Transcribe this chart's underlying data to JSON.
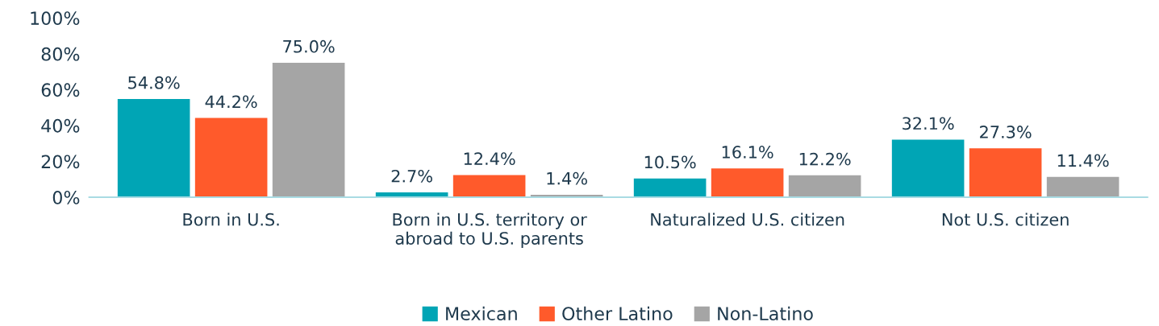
{
  "chart_data": {
    "type": "bar",
    "categories": [
      "Born in U.S.",
      "Born in U.S. territory or\nabroad to U.S. parents",
      "Naturalized U.S. citizen",
      "Not U.S. citizen"
    ],
    "series": [
      {
        "name": "Mexican",
        "color": "#00a5b5",
        "values": [
          54.8,
          2.7,
          10.5,
          32.1
        ],
        "value_labels": [
          "54.8%",
          "2.7%",
          "10.5%",
          "32.1%"
        ]
      },
      {
        "name": "Other Latino",
        "color": "#ff5a2b",
        "values": [
          44.2,
          12.4,
          16.1,
          27.3
        ],
        "value_labels": [
          "44.2%",
          "12.4%",
          "16.1%",
          "27.3%"
        ]
      },
      {
        "name": "Non-Latino",
        "color": "#a5a5a5",
        "values": [
          75.0,
          1.4,
          12.2,
          11.4
        ],
        "value_labels": [
          "75.0%",
          "1.4%",
          "12.2%",
          "11.4%"
        ]
      }
    ],
    "ylim": [
      0,
      100
    ],
    "yticks": [
      {
        "value": 0,
        "label": "0%"
      },
      {
        "value": 20,
        "label": "20%"
      },
      {
        "value": 40,
        "label": "40%"
      },
      {
        "value": 60,
        "label": "60%"
      },
      {
        "value": 80,
        "label": "80%"
      },
      {
        "value": 100,
        "label": "100%"
      }
    ],
    "grid": false,
    "legend": "bottom"
  }
}
